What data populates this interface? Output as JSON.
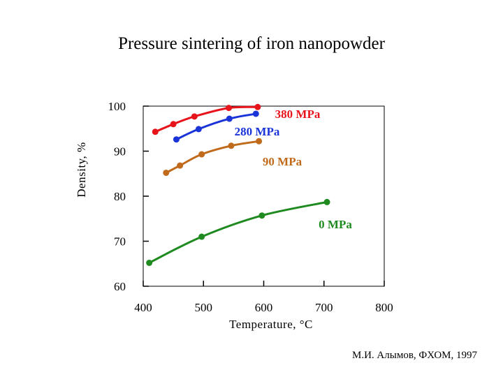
{
  "chart_data": {
    "type": "line",
    "title": "Pressure sintering of iron nanopowder",
    "xlabel": "Temperature, °C",
    "ylabel": "Density, %",
    "xlim": [
      400,
      800
    ],
    "ylim": [
      60,
      100
    ],
    "xticks": [
      "400",
      "500",
      "600",
      "700",
      "800"
    ],
    "yticks": [
      "60",
      "70",
      "80",
      "90",
      "100"
    ],
    "grid": false,
    "series": [
      {
        "name": "380 MPa",
        "label": "380 MPa",
        "color": "#e8141c",
        "x": [
          420,
          450,
          485,
          542,
          590
        ],
        "y": [
          94.3,
          96.0,
          97.7,
          99.6,
          99.8
        ]
      },
      {
        "name": "280 MPa",
        "label": "280 MPa",
        "color": "#1a34d8",
        "x": [
          455,
          492,
          543,
          587
        ],
        "y": [
          92.6,
          94.9,
          97.2,
          98.3
        ]
      },
      {
        "name": "90 MPa",
        "label": "90 MPa",
        "color": "#c06a1c",
        "x": [
          438,
          461,
          497,
          546,
          592
        ],
        "y": [
          85.2,
          86.8,
          89.3,
          91.2,
          92.2
        ]
      },
      {
        "name": "0 MPa",
        "label": "0 MPa",
        "color": "#1f8a1f",
        "x": [
          410,
          497,
          597,
          705
        ],
        "y": [
          65.2,
          71.0,
          75.7,
          78.7
        ]
      }
    ],
    "credit": "М.И. Алымов, ФХОМ, 1997"
  }
}
